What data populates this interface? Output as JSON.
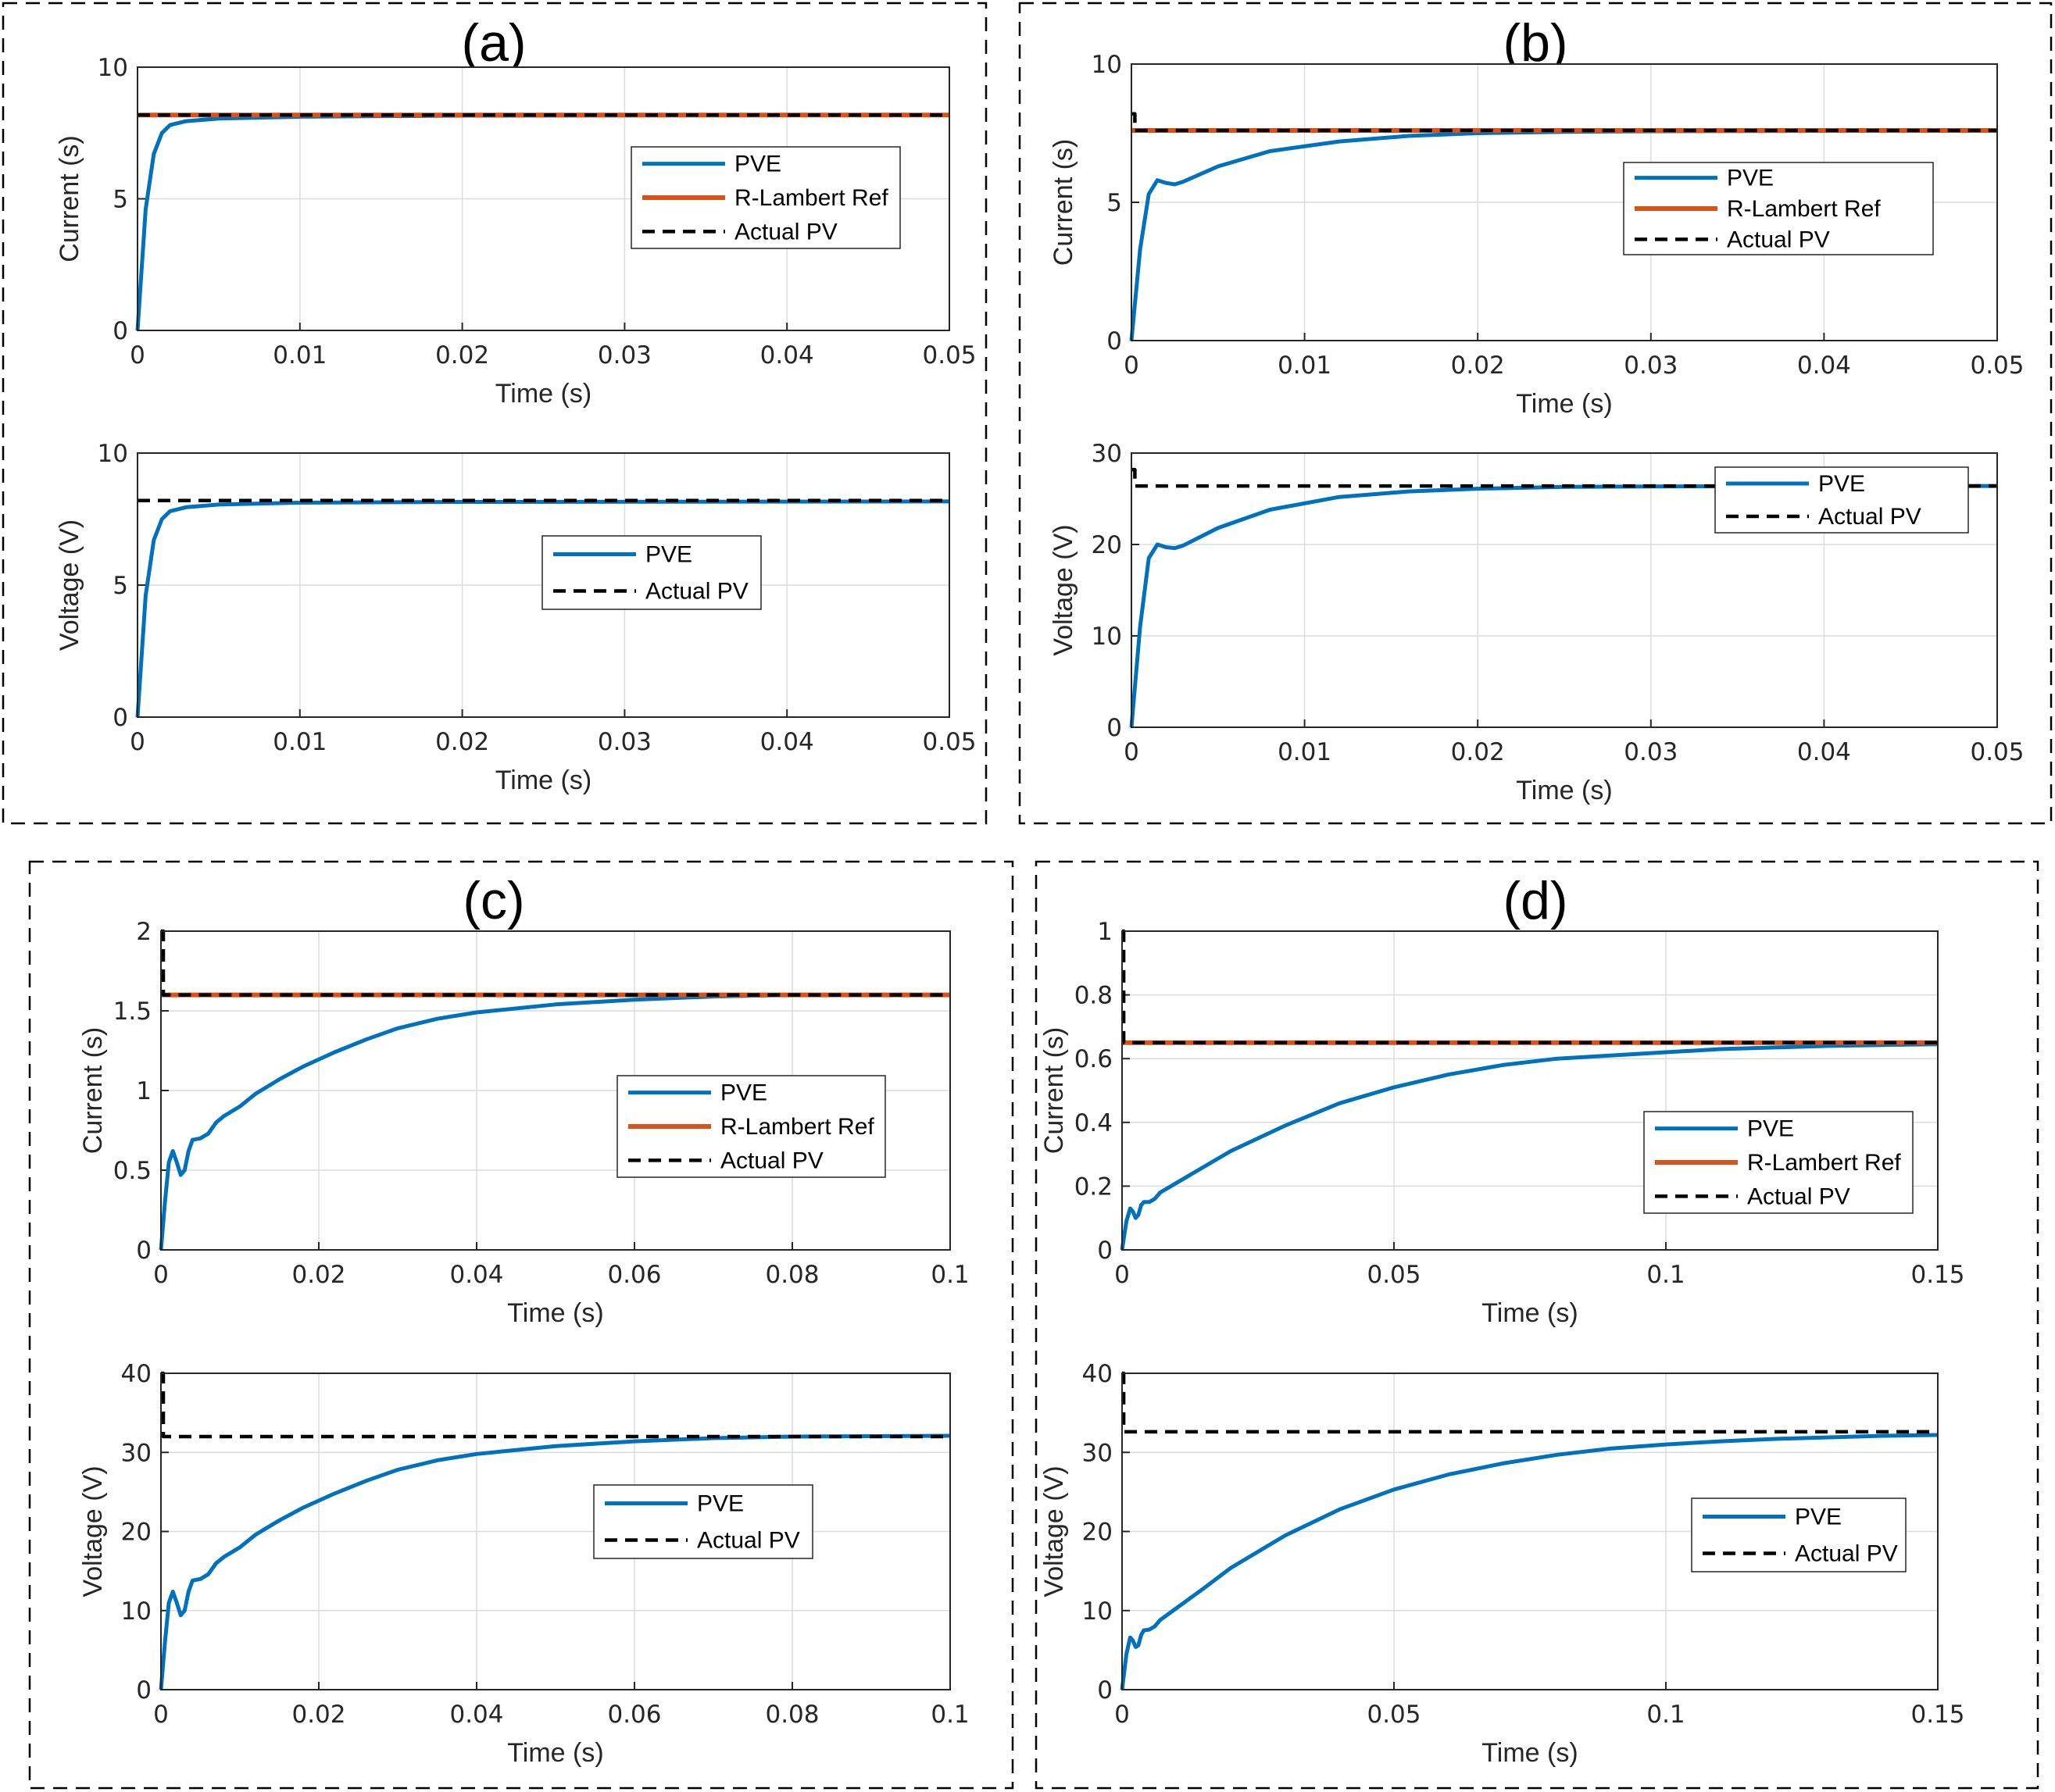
{
  "colors": {
    "pve": "#0072bd",
    "r_lambert": "#d95319",
    "actual": "#000000"
  },
  "chart_data": [
    {
      "panel": "(a)",
      "type": "line",
      "xlabel": "Time (s)",
      "ylabel": "Current (s)",
      "xlim": [
        0,
        0.05
      ],
      "ylim": [
        0,
        10
      ],
      "xticks": [
        "0",
        "0.01",
        "0.02",
        "0.03",
        "0.04",
        "0.05"
      ],
      "yticks": [
        "0",
        "5",
        "10"
      ],
      "legend": {
        "position": "right-center",
        "entries": [
          "PVE",
          "R-Lambert Ref",
          "Actual PV"
        ]
      },
      "series": [
        {
          "name": "PVE",
          "x": [
            0,
            0.0005,
            0.001,
            0.0015,
            0.002,
            0.003,
            0.005,
            0.01,
            0.02,
            0.05
          ],
          "y": [
            0,
            4.6,
            6.7,
            7.5,
            7.8,
            7.95,
            8.05,
            8.12,
            8.16,
            8.18
          ]
        },
        {
          "name": "R-Lambert Ref",
          "x": [
            0,
            0.05
          ],
          "y": [
            8.18,
            8.18
          ]
        },
        {
          "name": "Actual PV",
          "x": [
            0,
            0.05
          ],
          "y": [
            8.18,
            8.18
          ]
        }
      ]
    },
    {
      "panel": "(a)",
      "type": "line",
      "xlabel": "Time (s)",
      "ylabel": "Voltage (V)",
      "xlim": [
        0,
        0.05
      ],
      "ylim": [
        0,
        10
      ],
      "xticks": [
        "0",
        "0.01",
        "0.02",
        "0.03",
        "0.04",
        "0.05"
      ],
      "yticks": [
        "0",
        "5",
        "10"
      ],
      "legend": {
        "position": "center",
        "entries": [
          "PVE",
          "Actual PV"
        ]
      },
      "series": [
        {
          "name": "PVE",
          "x": [
            0,
            0.0005,
            0.001,
            0.0015,
            0.002,
            0.003,
            0.005,
            0.01,
            0.02,
            0.05
          ],
          "y": [
            0,
            4.6,
            6.7,
            7.5,
            7.8,
            7.95,
            8.05,
            8.12,
            8.15,
            8.17
          ]
        },
        {
          "name": "Actual PV",
          "x": [
            0,
            0.05
          ],
          "y": [
            8.2,
            8.2
          ]
        }
      ]
    },
    {
      "panel": "(b)",
      "type": "line",
      "xlabel": "Time (s)",
      "ylabel": "Current (s)",
      "xlim": [
        0,
        0.05
      ],
      "ylim": [
        0,
        10
      ],
      "xticks": [
        "0",
        "0.01",
        "0.02",
        "0.03",
        "0.04",
        "0.05"
      ],
      "yticks": [
        "0",
        "5",
        "10"
      ],
      "legend": {
        "position": "right-center",
        "entries": [
          "PVE",
          "R-Lambert Ref",
          "Actual PV"
        ]
      },
      "series": [
        {
          "name": "PVE",
          "x": [
            0,
            0.0005,
            0.001,
            0.0015,
            0.002,
            0.0025,
            0.003,
            0.005,
            0.008,
            0.012,
            0.016,
            0.02,
            0.025,
            0.03,
            0.05
          ],
          "y": [
            0,
            3.3,
            5.3,
            5.8,
            5.7,
            5.65,
            5.75,
            6.3,
            6.85,
            7.2,
            7.4,
            7.5,
            7.55,
            7.57,
            7.6
          ]
        },
        {
          "name": "R-Lambert Ref",
          "x": [
            0,
            0.05
          ],
          "y": [
            7.6,
            7.6
          ]
        },
        {
          "name": "Actual PV",
          "x": [
            0,
            0.0002,
            0.0002,
            0.05
          ],
          "y": [
            8.2,
            8.2,
            7.6,
            7.6
          ]
        }
      ]
    },
    {
      "panel": "(b)",
      "type": "line",
      "xlabel": "Time (s)",
      "ylabel": "Voltage (V)",
      "xlim": [
        0,
        0.05
      ],
      "ylim": [
        0,
        30
      ],
      "xticks": [
        "0",
        "0.01",
        "0.02",
        "0.03",
        "0.04",
        "0.05"
      ],
      "yticks": [
        "0",
        "10",
        "20",
        "30"
      ],
      "legend": {
        "position": "top-right",
        "entries": [
          "PVE",
          "Actual PV"
        ]
      },
      "series": [
        {
          "name": "PVE",
          "x": [
            0,
            0.0005,
            0.001,
            0.0015,
            0.002,
            0.0025,
            0.003,
            0.005,
            0.008,
            0.012,
            0.016,
            0.02,
            0.025,
            0.03,
            0.05
          ],
          "y": [
            0,
            11,
            18.5,
            20,
            19.7,
            19.6,
            19.9,
            21.8,
            23.8,
            25.2,
            25.8,
            26.1,
            26.3,
            26.35,
            26.4
          ]
        },
        {
          "name": "Actual PV",
          "x": [
            0,
            0.0002,
            0.0002,
            0.05
          ],
          "y": [
            28.2,
            28.2,
            26.4,
            26.4
          ]
        }
      ]
    },
    {
      "panel": "(c)",
      "type": "line",
      "xlabel": "Time (s)",
      "ylabel": "Current (s)",
      "xlim": [
        0,
        0.1
      ],
      "ylim": [
        0,
        2
      ],
      "xticks": [
        "0",
        "0.02",
        "0.04",
        "0.06",
        "0.08",
        "0.1"
      ],
      "yticks": [
        "0",
        "0.5",
        "1",
        "1.5",
        "2"
      ],
      "legend": {
        "position": "right-center",
        "entries": [
          "PVE",
          "R-Lambert Ref",
          "Actual PV"
        ]
      },
      "series": [
        {
          "name": "PVE",
          "x": [
            0,
            0.0005,
            0.001,
            0.0015,
            0.002,
            0.0025,
            0.003,
            0.0035,
            0.004,
            0.005,
            0.006,
            0.007,
            0.008,
            0.01,
            0.012,
            0.015,
            0.018,
            0.022,
            0.026,
            0.03,
            0.035,
            0.04,
            0.05,
            0.06,
            0.07,
            0.08,
            0.1
          ],
          "y": [
            0,
            0.3,
            0.55,
            0.62,
            0.55,
            0.47,
            0.5,
            0.62,
            0.69,
            0.7,
            0.73,
            0.8,
            0.84,
            0.9,
            0.98,
            1.07,
            1.15,
            1.24,
            1.32,
            1.39,
            1.45,
            1.49,
            1.54,
            1.57,
            1.59,
            1.6,
            1.6
          ]
        },
        {
          "name": "R-Lambert Ref",
          "x": [
            0,
            0.1
          ],
          "y": [
            1.6,
            1.6
          ]
        },
        {
          "name": "Actual PV",
          "x": [
            0,
            0.0003,
            0.0003,
            0.1
          ],
          "y": [
            2,
            2,
            1.6,
            1.6
          ]
        }
      ]
    },
    {
      "panel": "(c)",
      "type": "line",
      "xlabel": "Time (s)",
      "ylabel": "Voltage (V)",
      "xlim": [
        0,
        0.1
      ],
      "ylim": [
        0,
        40
      ],
      "xticks": [
        "0",
        "0.02",
        "0.04",
        "0.06",
        "0.08",
        "0.1"
      ],
      "yticks": [
        "0",
        "10",
        "20",
        "30",
        "40"
      ],
      "legend": {
        "position": "right-center",
        "entries": [
          "PVE",
          "Actual PV"
        ]
      },
      "series": [
        {
          "name": "PVE",
          "x": [
            0,
            0.0005,
            0.001,
            0.0015,
            0.002,
            0.0025,
            0.003,
            0.0035,
            0.004,
            0.005,
            0.006,
            0.007,
            0.008,
            0.01,
            0.012,
            0.015,
            0.018,
            0.022,
            0.026,
            0.03,
            0.035,
            0.04,
            0.05,
            0.06,
            0.07,
            0.08,
            0.1
          ],
          "y": [
            0,
            6,
            11,
            12.4,
            11,
            9.4,
            10,
            12.4,
            13.8,
            14,
            14.6,
            16,
            16.8,
            18,
            19.6,
            21.4,
            23,
            24.8,
            26.4,
            27.8,
            29,
            29.8,
            30.8,
            31.4,
            31.8,
            32,
            32.1
          ]
        },
        {
          "name": "Actual PV",
          "x": [
            0,
            0.0003,
            0.0003,
            0.1
          ],
          "y": [
            40,
            40,
            32,
            32
          ]
        }
      ]
    },
    {
      "panel": "(d)",
      "type": "line",
      "xlabel": "Time (s)",
      "ylabel": "Current (s)",
      "xlim": [
        0,
        0.15
      ],
      "ylim": [
        0,
        1
      ],
      "xticks": [
        "0",
        "0.05",
        "0.1",
        "0.15"
      ],
      "yticks": [
        "0",
        "0.2",
        "0.4",
        "0.6",
        "0.8",
        "1"
      ],
      "legend": {
        "position": "bottom-right",
        "entries": [
          "PVE",
          "R-Lambert Ref",
          "Actual PV"
        ]
      },
      "series": [
        {
          "name": "PVE",
          "x": [
            0,
            0.0008,
            0.0015,
            0.002,
            0.0025,
            0.003,
            0.0035,
            0.004,
            0.005,
            0.006,
            0.007,
            0.008,
            0.01,
            0.015,
            0.02,
            0.03,
            0.04,
            0.05,
            0.06,
            0.07,
            0.08,
            0.09,
            0.1,
            0.11,
            0.12,
            0.13,
            0.14,
            0.15
          ],
          "y": [
            0,
            0.09,
            0.13,
            0.12,
            0.1,
            0.11,
            0.14,
            0.15,
            0.15,
            0.16,
            0.18,
            0.19,
            0.21,
            0.26,
            0.31,
            0.39,
            0.46,
            0.51,
            0.55,
            0.58,
            0.6,
            0.61,
            0.62,
            0.63,
            0.635,
            0.64,
            0.643,
            0.645
          ]
        },
        {
          "name": "R-Lambert Ref",
          "x": [
            0,
            0.15
          ],
          "y": [
            0.65,
            0.65
          ]
        },
        {
          "name": "Actual PV",
          "x": [
            0,
            0.0003,
            0.0003,
            0.15
          ],
          "y": [
            1,
            1,
            0.65,
            0.65
          ]
        }
      ]
    },
    {
      "panel": "(d)",
      "type": "line",
      "xlabel": "Time (s)",
      "ylabel": "Voltage (V)",
      "xlim": [
        0,
        0.15
      ],
      "ylim": [
        0,
        40
      ],
      "xticks": [
        "0",
        "0.05",
        "0.1",
        "0.15"
      ],
      "yticks": [
        "0",
        "10",
        "20",
        "30",
        "40"
      ],
      "legend": {
        "position": "right-center",
        "entries": [
          "PVE",
          "Actual PV"
        ]
      },
      "series": [
        {
          "name": "PVE",
          "x": [
            0,
            0.0008,
            0.0015,
            0.002,
            0.0025,
            0.003,
            0.0035,
            0.004,
            0.005,
            0.006,
            0.007,
            0.008,
            0.01,
            0.015,
            0.02,
            0.03,
            0.04,
            0.05,
            0.06,
            0.07,
            0.08,
            0.09,
            0.1,
            0.11,
            0.12,
            0.13,
            0.14,
            0.15
          ],
          "y": [
            0,
            4.5,
            6.6,
            6.2,
            5.4,
            5.6,
            6.9,
            7.5,
            7.6,
            8,
            8.8,
            9.3,
            10.3,
            12.8,
            15.4,
            19.5,
            22.8,
            25.3,
            27.2,
            28.6,
            29.7,
            30.5,
            31,
            31.4,
            31.7,
            31.9,
            32.1,
            32.2
          ]
        },
        {
          "name": "Actual PV",
          "x": [
            0,
            0.0003,
            0.0003,
            0.15
          ],
          "y": [
            40,
            40,
            32.6,
            32.6
          ]
        }
      ]
    }
  ]
}
